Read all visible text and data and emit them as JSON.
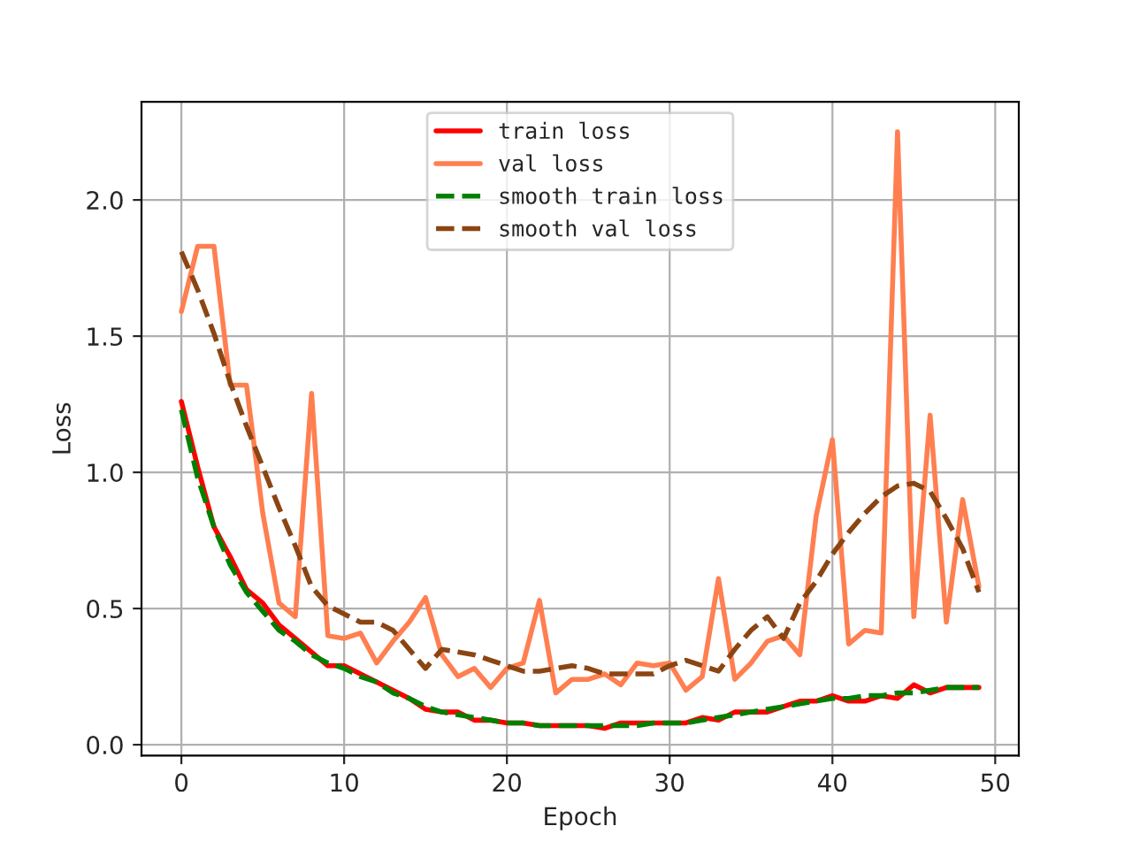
{
  "chart_data": {
    "type": "line",
    "xlabel": "Epoch",
    "ylabel": "Loss",
    "x": [
      0,
      1,
      2,
      3,
      4,
      5,
      6,
      7,
      8,
      9,
      10,
      11,
      12,
      13,
      14,
      15,
      16,
      17,
      18,
      19,
      20,
      21,
      22,
      23,
      24,
      25,
      26,
      27,
      28,
      29,
      30,
      31,
      32,
      33,
      34,
      35,
      36,
      37,
      38,
      39,
      40,
      41,
      42,
      43,
      44,
      45,
      46,
      47,
      48,
      49
    ],
    "series": [
      {
        "name": "train loss",
        "color": "#ff0000",
        "line_style": "solid",
        "values": [
          1.26,
          1.02,
          0.8,
          0.69,
          0.57,
          0.52,
          0.44,
          0.39,
          0.34,
          0.29,
          0.29,
          0.26,
          0.23,
          0.2,
          0.17,
          0.13,
          0.12,
          0.12,
          0.09,
          0.09,
          0.08,
          0.08,
          0.07,
          0.07,
          0.07,
          0.07,
          0.06,
          0.08,
          0.08,
          0.08,
          0.08,
          0.08,
          0.1,
          0.09,
          0.12,
          0.12,
          0.12,
          0.14,
          0.16,
          0.16,
          0.18,
          0.16,
          0.16,
          0.18,
          0.17,
          0.22,
          0.19,
          0.21,
          0.21,
          0.21
        ]
      },
      {
        "name": "val loss",
        "color": "#ff7f50",
        "line_style": "solid",
        "values": [
          1.59,
          1.83,
          1.83,
          1.32,
          1.32,
          0.85,
          0.52,
          0.47,
          1.29,
          0.4,
          0.39,
          0.41,
          0.3,
          0.38,
          0.45,
          0.54,
          0.33,
          0.25,
          0.28,
          0.21,
          0.28,
          0.3,
          0.53,
          0.19,
          0.24,
          0.24,
          0.26,
          0.22,
          0.3,
          0.29,
          0.3,
          0.2,
          0.25,
          0.61,
          0.24,
          0.3,
          0.38,
          0.4,
          0.33,
          0.84,
          1.12,
          0.37,
          0.42,
          0.41,
          2.25,
          0.47,
          1.21,
          0.45,
          0.9,
          0.58
        ]
      },
      {
        "name": "smooth train loss",
        "color": "#008000",
        "line_style": "dashed",
        "values": [
          1.23,
          0.98,
          0.8,
          0.66,
          0.56,
          0.49,
          0.42,
          0.38,
          0.33,
          0.3,
          0.28,
          0.25,
          0.23,
          0.19,
          0.17,
          0.14,
          0.12,
          0.11,
          0.1,
          0.09,
          0.08,
          0.08,
          0.07,
          0.07,
          0.07,
          0.07,
          0.07,
          0.07,
          0.07,
          0.08,
          0.08,
          0.08,
          0.09,
          0.1,
          0.11,
          0.12,
          0.13,
          0.14,
          0.15,
          0.16,
          0.17,
          0.17,
          0.18,
          0.18,
          0.19,
          0.19,
          0.2,
          0.21,
          0.21,
          0.21
        ]
      },
      {
        "name": "smooth val loss",
        "color": "#8b4513",
        "line_style": "dashed",
        "values": [
          1.81,
          1.67,
          1.51,
          1.33,
          1.17,
          1.02,
          0.87,
          0.73,
          0.58,
          0.51,
          0.48,
          0.45,
          0.45,
          0.42,
          0.35,
          0.28,
          0.35,
          0.34,
          0.33,
          0.31,
          0.29,
          0.27,
          0.27,
          0.28,
          0.29,
          0.28,
          0.26,
          0.26,
          0.26,
          0.26,
          0.29,
          0.31,
          0.29,
          0.27,
          0.35,
          0.42,
          0.47,
          0.39,
          0.52,
          0.6,
          0.7,
          0.78,
          0.85,
          0.91,
          0.95,
          0.96,
          0.93,
          0.83,
          0.72,
          0.56
        ]
      }
    ],
    "xlim": [
      -2.45,
      51.45
    ],
    "xticks": [
      0,
      10,
      20,
      30,
      40,
      50
    ],
    "ylim": [
      -0.04,
      2.36
    ],
    "yticks": [
      {
        "value": 0,
        "label": "0.0"
      },
      {
        "value": 0.5,
        "label": "0.5"
      },
      {
        "value": 1.0,
        "label": "1.0"
      },
      {
        "value": 1.5,
        "label": "1.5"
      },
      {
        "value": 2.0,
        "label": "2.0"
      }
    ],
    "grid": true,
    "legend": "top"
  }
}
